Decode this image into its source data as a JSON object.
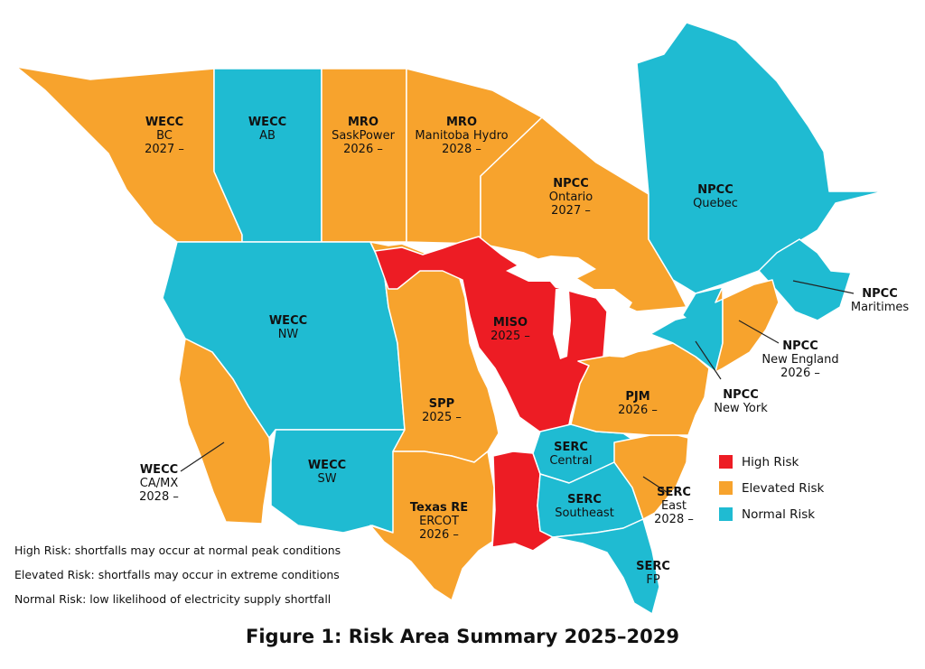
{
  "caption": "Figure 1: Risk Area Summary 2025–2029",
  "colors": {
    "high": "#ed1c24",
    "elevated": "#f7a32d",
    "normal": "#1fbbd2",
    "border": "#ffffff"
  },
  "legend": [
    {
      "label": "High Risk",
      "color": "#ed1c24"
    },
    {
      "label": "Elevated Risk",
      "color": "#f7a32d"
    },
    {
      "label": "Normal Risk",
      "color": "#1fbbd2"
    }
  ],
  "notes": [
    "High Risk: shortfalls may occur at normal peak conditions",
    "Elevated Risk: shortfalls may occur in extreme conditions",
    "Normal Risk: low likelihood of electricity supply shortfall"
  ],
  "regions": [
    {
      "entity": "WECC",
      "area": "BC",
      "year": "2027 –",
      "risk": "elevated"
    },
    {
      "entity": "WECC",
      "area": "AB",
      "year": "",
      "risk": "normal"
    },
    {
      "entity": "MRO",
      "area": "SaskPower",
      "year": "2026 –",
      "risk": "elevated"
    },
    {
      "entity": "MRO",
      "area": "Manitoba Hydro",
      "year": "2028 –",
      "risk": "elevated"
    },
    {
      "entity": "NPCC",
      "area": "Ontario",
      "year": "2027 –",
      "risk": "elevated"
    },
    {
      "entity": "NPCC",
      "area": "Quebec",
      "year": "",
      "risk": "normal"
    },
    {
      "entity": "NPCC",
      "area": "Maritimes",
      "year": "",
      "risk": "normal"
    },
    {
      "entity": "NPCC",
      "area": "New England",
      "year": "2026 –",
      "risk": "elevated"
    },
    {
      "entity": "NPCC",
      "area": "New York",
      "year": "",
      "risk": "normal"
    },
    {
      "entity": "WECC",
      "area": "NW",
      "year": "",
      "risk": "normal"
    },
    {
      "entity": "MISO",
      "area": "2025 –",
      "year": "",
      "risk": "high"
    },
    {
      "entity": "SPP",
      "area": "2025 –",
      "year": "",
      "risk": "elevated"
    },
    {
      "entity": "PJM",
      "area": "2026 –",
      "year": "",
      "risk": "elevated"
    },
    {
      "entity": "WECC",
      "area": "SW",
      "year": "",
      "risk": "normal"
    },
    {
      "entity": "WECC",
      "area": "CA/MX",
      "year": "2028 –",
      "risk": "elevated"
    },
    {
      "entity": "SERC",
      "area": "Central",
      "year": "",
      "risk": "normal"
    },
    {
      "entity": "SERC",
      "area": "Southeast",
      "year": "",
      "risk": "normal"
    },
    {
      "entity": "SERC",
      "area": "East",
      "year": "2028 –",
      "risk": "elevated"
    },
    {
      "entity": "Texas RE",
      "area": "ERCOT",
      "year": "2026 –",
      "risk": "elevated"
    },
    {
      "entity": "SERC",
      "area": "FP",
      "year": "",
      "risk": "normal"
    }
  ]
}
